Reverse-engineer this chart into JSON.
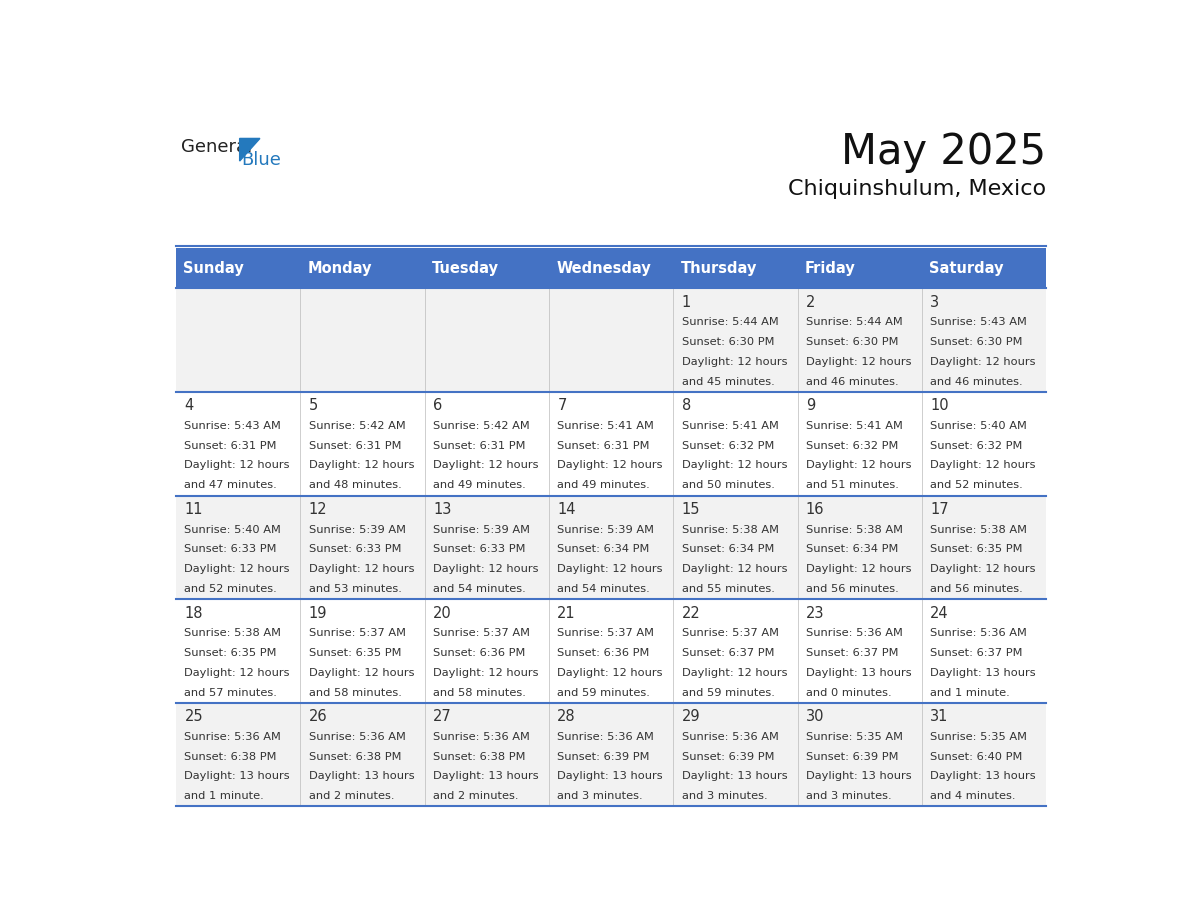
{
  "title": "May 2025",
  "subtitle": "Chiquinshulum, Mexico",
  "days_of_week": [
    "Sunday",
    "Monday",
    "Tuesday",
    "Wednesday",
    "Thursday",
    "Friday",
    "Saturday"
  ],
  "header_bg": "#4472C4",
  "header_text_color": "#FFFFFF",
  "odd_row_bg": "#F2F2F2",
  "even_row_bg": "#FFFFFF",
  "cell_text_color": "#333333",
  "day_num_color": "#333333",
  "divider_color": "#4472C4",
  "calendar_data": [
    [
      null,
      null,
      null,
      null,
      {
        "day": 1,
        "sunrise": "5:44 AM",
        "sunset": "6:30 PM",
        "daylight": "12 hours",
        "daylight2": "and 45 minutes."
      },
      {
        "day": 2,
        "sunrise": "5:44 AM",
        "sunset": "6:30 PM",
        "daylight": "12 hours",
        "daylight2": "and 46 minutes."
      },
      {
        "day": 3,
        "sunrise": "5:43 AM",
        "sunset": "6:30 PM",
        "daylight": "12 hours",
        "daylight2": "and 46 minutes."
      }
    ],
    [
      {
        "day": 4,
        "sunrise": "5:43 AM",
        "sunset": "6:31 PM",
        "daylight": "12 hours",
        "daylight2": "and 47 minutes."
      },
      {
        "day": 5,
        "sunrise": "5:42 AM",
        "sunset": "6:31 PM",
        "daylight": "12 hours",
        "daylight2": "and 48 minutes."
      },
      {
        "day": 6,
        "sunrise": "5:42 AM",
        "sunset": "6:31 PM",
        "daylight": "12 hours",
        "daylight2": "and 49 minutes."
      },
      {
        "day": 7,
        "sunrise": "5:41 AM",
        "sunset": "6:31 PM",
        "daylight": "12 hours",
        "daylight2": "and 49 minutes."
      },
      {
        "day": 8,
        "sunrise": "5:41 AM",
        "sunset": "6:32 PM",
        "daylight": "12 hours",
        "daylight2": "and 50 minutes."
      },
      {
        "day": 9,
        "sunrise": "5:41 AM",
        "sunset": "6:32 PM",
        "daylight": "12 hours",
        "daylight2": "and 51 minutes."
      },
      {
        "day": 10,
        "sunrise": "5:40 AM",
        "sunset": "6:32 PM",
        "daylight": "12 hours",
        "daylight2": "and 52 minutes."
      }
    ],
    [
      {
        "day": 11,
        "sunrise": "5:40 AM",
        "sunset": "6:33 PM",
        "daylight": "12 hours",
        "daylight2": "and 52 minutes."
      },
      {
        "day": 12,
        "sunrise": "5:39 AM",
        "sunset": "6:33 PM",
        "daylight": "12 hours",
        "daylight2": "and 53 minutes."
      },
      {
        "day": 13,
        "sunrise": "5:39 AM",
        "sunset": "6:33 PM",
        "daylight": "12 hours",
        "daylight2": "and 54 minutes."
      },
      {
        "day": 14,
        "sunrise": "5:39 AM",
        "sunset": "6:34 PM",
        "daylight": "12 hours",
        "daylight2": "and 54 minutes."
      },
      {
        "day": 15,
        "sunrise": "5:38 AM",
        "sunset": "6:34 PM",
        "daylight": "12 hours",
        "daylight2": "and 55 minutes."
      },
      {
        "day": 16,
        "sunrise": "5:38 AM",
        "sunset": "6:34 PM",
        "daylight": "12 hours",
        "daylight2": "and 56 minutes."
      },
      {
        "day": 17,
        "sunrise": "5:38 AM",
        "sunset": "6:35 PM",
        "daylight": "12 hours",
        "daylight2": "and 56 minutes."
      }
    ],
    [
      {
        "day": 18,
        "sunrise": "5:38 AM",
        "sunset": "6:35 PM",
        "daylight": "12 hours",
        "daylight2": "and 57 minutes."
      },
      {
        "day": 19,
        "sunrise": "5:37 AM",
        "sunset": "6:35 PM",
        "daylight": "12 hours",
        "daylight2": "and 58 minutes."
      },
      {
        "day": 20,
        "sunrise": "5:37 AM",
        "sunset": "6:36 PM",
        "daylight": "12 hours",
        "daylight2": "and 58 minutes."
      },
      {
        "day": 21,
        "sunrise": "5:37 AM",
        "sunset": "6:36 PM",
        "daylight": "12 hours",
        "daylight2": "and 59 minutes."
      },
      {
        "day": 22,
        "sunrise": "5:37 AM",
        "sunset": "6:37 PM",
        "daylight": "12 hours",
        "daylight2": "and 59 minutes."
      },
      {
        "day": 23,
        "sunrise": "5:36 AM",
        "sunset": "6:37 PM",
        "daylight": "13 hours",
        "daylight2": "and 0 minutes."
      },
      {
        "day": 24,
        "sunrise": "5:36 AM",
        "sunset": "6:37 PM",
        "daylight": "13 hours",
        "daylight2": "and 1 minute."
      }
    ],
    [
      {
        "day": 25,
        "sunrise": "5:36 AM",
        "sunset": "6:38 PM",
        "daylight": "13 hours",
        "daylight2": "and 1 minute."
      },
      {
        "day": 26,
        "sunrise": "5:36 AM",
        "sunset": "6:38 PM",
        "daylight": "13 hours",
        "daylight2": "and 2 minutes."
      },
      {
        "day": 27,
        "sunrise": "5:36 AM",
        "sunset": "6:38 PM",
        "daylight": "13 hours",
        "daylight2": "and 2 minutes."
      },
      {
        "day": 28,
        "sunrise": "5:36 AM",
        "sunset": "6:39 PM",
        "daylight": "13 hours",
        "daylight2": "and 3 minutes."
      },
      {
        "day": 29,
        "sunrise": "5:36 AM",
        "sunset": "6:39 PM",
        "daylight": "13 hours",
        "daylight2": "and 3 minutes."
      },
      {
        "day": 30,
        "sunrise": "5:35 AM",
        "sunset": "6:39 PM",
        "daylight": "13 hours",
        "daylight2": "and 3 minutes."
      },
      {
        "day": 31,
        "sunrise": "5:35 AM",
        "sunset": "6:40 PM",
        "daylight": "13 hours",
        "daylight2": "and 4 minutes."
      }
    ]
  ],
  "logo_general_color": "#222222",
  "logo_blue_color": "#2479BD",
  "logo_triangle_color": "#2479BD"
}
